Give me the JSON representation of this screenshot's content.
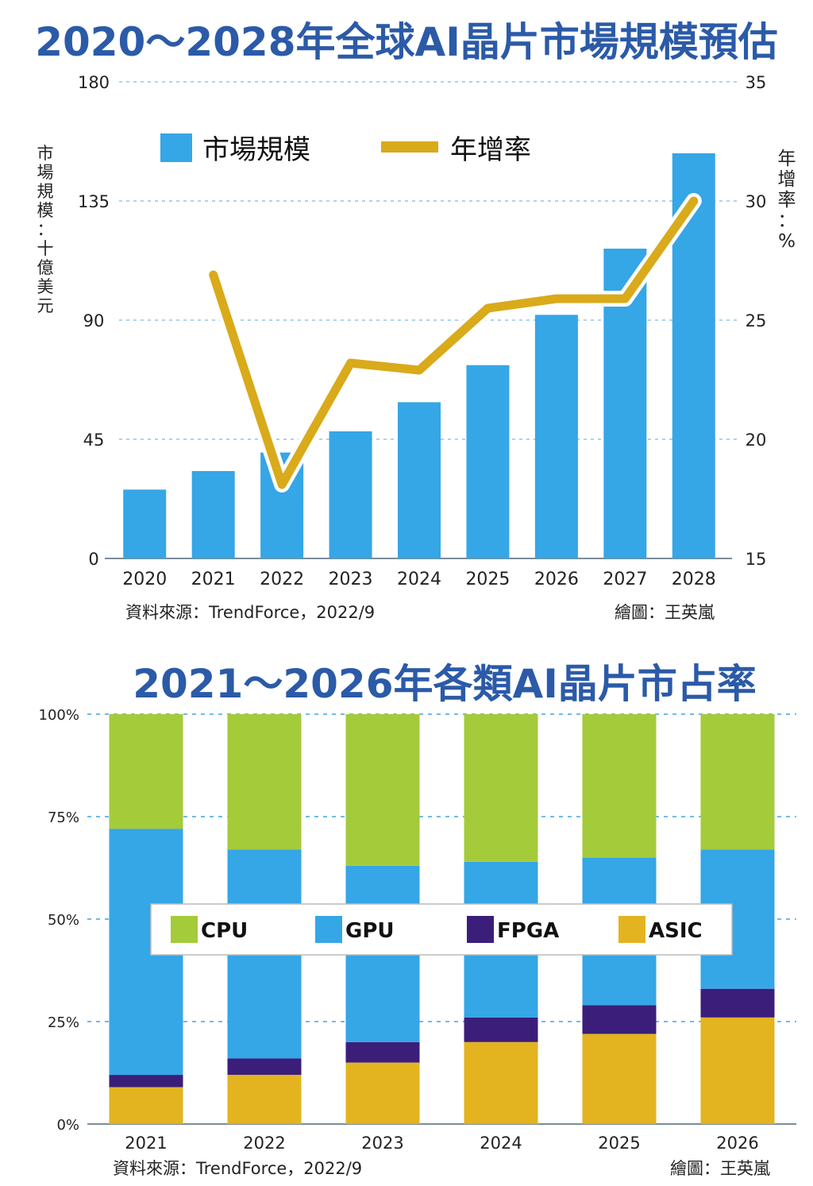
{
  "chart_data": [
    {
      "type": "bar+line",
      "title": "2020～2028年全球AI晶片市場規模預估",
      "ylabel": "市場規模：十億美元",
      "y2label": "年增率：%",
      "categories": [
        "2020",
        "2021",
        "2022",
        "2023",
        "2024",
        "2025",
        "2026",
        "2027",
        "2028"
      ],
      "ylim": [
        0,
        180
      ],
      "y2lim": [
        15,
        35
      ],
      "yticks": [
        "0",
        "45",
        "90",
        "135",
        "180"
      ],
      "y2ticks": [
        "15",
        "20",
        "25",
        "30",
        "35"
      ],
      "legend_position": "top-center",
      "grid": true,
      "series": [
        {
          "name": "市場規模",
          "type": "bar",
          "color": "#35a6e6",
          "values": [
            26,
            33,
            40,
            48,
            59,
            73,
            92,
            117,
            153
          ]
        },
        {
          "name": "年增率",
          "type": "line",
          "axis": "y2",
          "color": "#d9aa1a",
          "values": [
            null,
            26.9,
            18.1,
            23.2,
            22.9,
            25.5,
            25.9,
            25.9,
            30.0
          ]
        }
      ],
      "source": "資料來源：TrendForce，2022/9",
      "credit": "繪圖：王英嵐"
    },
    {
      "type": "stacked-bar",
      "title": "2021～2026年各類AI晶片市占率",
      "categories": [
        "2021",
        "2022",
        "2023",
        "2024",
        "2025",
        "2026"
      ],
      "ylim": [
        0,
        100
      ],
      "yticks": [
        "0%",
        "25%",
        "50%",
        "75%",
        "100%"
      ],
      "legend_position": "middle",
      "grid": true,
      "series": [
        {
          "name": "ASIC",
          "color": "#e3b320",
          "values": [
            9,
            12,
            15,
            20,
            22,
            26
          ]
        },
        {
          "name": "FPGA",
          "color": "#3a1e7a",
          "values": [
            3,
            4,
            5,
            6,
            7,
            7
          ]
        },
        {
          "name": "GPU",
          "color": "#35a6e6",
          "values": [
            60,
            51,
            43,
            38,
            36,
            34
          ]
        },
        {
          "name": "CPU",
          "color": "#a4cb3a",
          "values": [
            28,
            33,
            37,
            36,
            35,
            33
          ]
        }
      ],
      "source": "資料來源：TrendForce，2022/9",
      "credit": "繪圖：王英嵐"
    }
  ]
}
